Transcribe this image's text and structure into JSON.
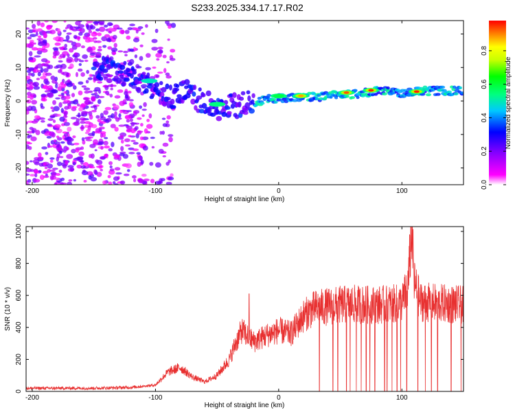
{
  "title": "S233.2025.334.17.17.R02",
  "chart_data": [
    {
      "type": "heatmap",
      "name": "spectrogram",
      "xlabel": "Height of straight line (km)",
      "ylabel": "Frequency (Hz)",
      "xlim": [
        -205,
        150
      ],
      "ylim": [
        -25,
        24
      ],
      "xticks": [
        -200,
        -100,
        0,
        100
      ],
      "yticks": [
        -20,
        -10,
        0,
        10,
        20
      ],
      "colorbar": {
        "label": "Normalized spectral amplitude",
        "range": [
          0.0,
          0.98
        ],
        "ticks": [
          0.0,
          0.2,
          0.4,
          0.6,
          0.8
        ],
        "tick_labels": [
          "0.0",
          "0.2",
          "0.4",
          "0.6",
          "0.8"
        ],
        "colormap": [
          "#ffffff",
          "#ff00ff",
          "#8000ff",
          "#0000ff",
          "#00c8ff",
          "#00ff80",
          "#00ff00",
          "#c8ff00",
          "#ffff00",
          "#ff8000",
          "#ff0000"
        ]
      },
      "ridge": {
        "description_points": [
          {
            "x": -150,
            "y": 10
          },
          {
            "x": -130,
            "y": 9
          },
          {
            "x": -110,
            "y": 6
          },
          {
            "x": -100,
            "y": 3
          },
          {
            "x": -90,
            "y": 1
          },
          {
            "x": -75,
            "y": 3
          },
          {
            "x": -60,
            "y": -1
          },
          {
            "x": -45,
            "y": -2
          },
          {
            "x": -30,
            "y": -1
          },
          {
            "x": -15,
            "y": 0
          },
          {
            "x": 0,
            "y": 1
          },
          {
            "x": 20,
            "y": 1
          },
          {
            "x": 40,
            "y": 1.5
          },
          {
            "x": 60,
            "y": 2
          },
          {
            "x": 80,
            "y": 3
          },
          {
            "x": 100,
            "y": 2.5
          },
          {
            "x": 120,
            "y": 3
          },
          {
            "x": 150,
            "y": 3
          }
        ],
        "peak_regions": [
          {
            "x": 18,
            "y": 1.5,
            "amplitude": 0.9
          },
          {
            "x": 55,
            "y": 2.5,
            "amplitude": 0.95
          },
          {
            "x": 75,
            "y": 3.2,
            "amplitude": 0.98
          },
          {
            "x": 112,
            "y": 2.8,
            "amplitude": 0.98
          },
          {
            "x": 0,
            "y": 1.5,
            "amplitude": 0.6
          },
          {
            "x": -50,
            "y": -1,
            "amplitude": 0.55
          },
          {
            "x": -105,
            "y": 6,
            "amplitude": 0.5
          }
        ],
        "noise_region_km": [
          -205,
          -110
        ]
      }
    },
    {
      "type": "line",
      "name": "snr",
      "xlabel": "Height of straight line (km)",
      "ylabel": "SNR (10 * v/v)",
      "xlim": [
        -205,
        150
      ],
      "ylim": [
        0,
        1030
      ],
      "xticks": [
        -200,
        -100,
        0,
        100
      ],
      "yticks": [
        0,
        200,
        400,
        600,
        800,
        1000
      ],
      "color": "#e83030",
      "series": [
        {
          "name": "SNR",
          "x": [
            -205,
            -150,
            -120,
            -100,
            -90,
            -80,
            -70,
            -60,
            -50,
            -40,
            -35,
            -30,
            -20,
            -10,
            0,
            10,
            20,
            25,
            30,
            40,
            50,
            60,
            80,
            100,
            105,
            108,
            110,
            115,
            130,
            150
          ],
          "y": [
            20,
            20,
            25,
            40,
            120,
            150,
            90,
            60,
            100,
            200,
            300,
            380,
            310,
            350,
            380,
            360,
            470,
            500,
            520,
            530,
            540,
            545,
            540,
            550,
            660,
            1020,
            680,
            560,
            550,
            540
          ],
          "dropouts_x": [
            33,
            44,
            48,
            55,
            58,
            63,
            67,
            71,
            74,
            78,
            86,
            88,
            92,
            96,
            99,
            104,
            113,
            119,
            124,
            129,
            140,
            148
          ],
          "spikes": [
            {
              "x": -24,
              "y": 610
            },
            {
              "x": 93,
              "y": 580
            },
            {
              "x": 103,
              "y": 620
            }
          ]
        }
      ]
    }
  ]
}
